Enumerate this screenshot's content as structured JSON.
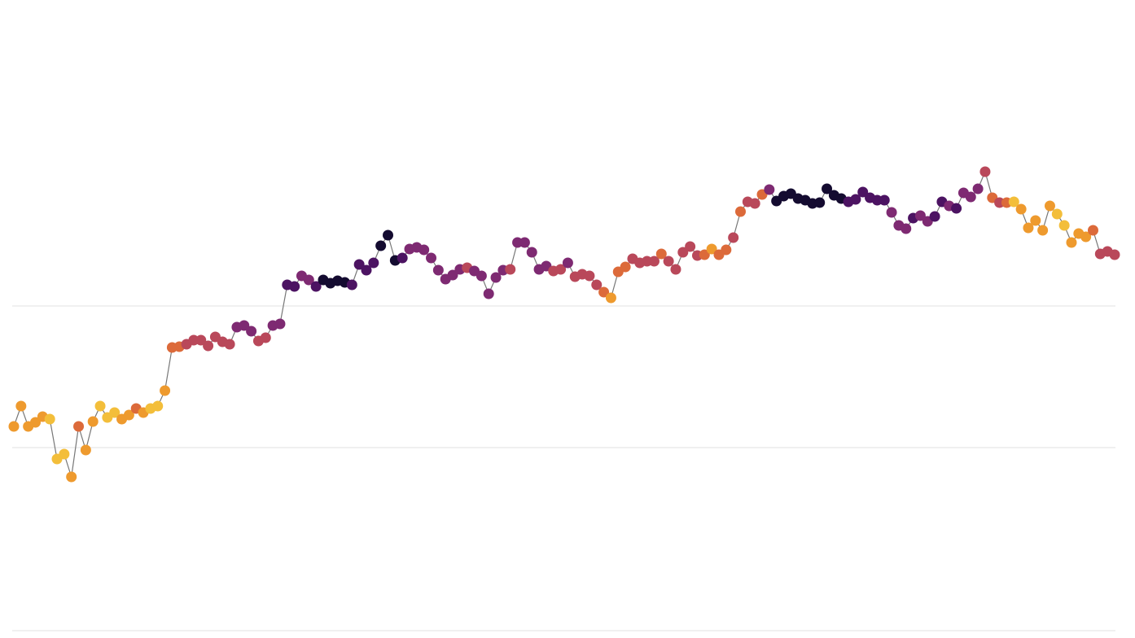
{
  "chart_data": {
    "type": "line",
    "values": [
      251,
      276,
      251,
      256,
      263,
      260,
      211,
      217,
      189,
      251,
      222,
      257,
      276,
      262,
      268,
      260,
      265,
      273,
      268,
      273,
      276,
      295,
      348,
      349,
      352,
      357,
      357,
      350,
      361,
      355,
      352,
      373,
      375,
      368,
      356,
      360,
      375,
      377,
      425,
      423,
      436,
      431,
      423,
      431,
      427,
      430,
      428,
      425,
      450,
      443,
      452,
      473,
      486,
      455,
      458,
      469,
      471,
      468,
      458,
      443,
      432,
      437,
      444,
      446,
      442,
      436,
      414,
      434,
      443,
      444,
      477,
      477,
      465,
      444,
      448,
      442,
      444,
      452,
      435,
      438,
      436,
      425,
      416,
      409,
      441,
      447,
      457,
      452,
      454,
      454,
      463,
      454,
      444,
      465,
      472,
      461,
      462,
      469,
      462,
      468,
      483,
      515,
      527,
      525,
      536,
      542,
      528,
      534,
      537,
      531,
      529,
      525,
      526,
      543,
      535,
      531,
      527,
      530,
      539,
      532,
      529,
      529,
      514,
      498,
      494,
      507,
      510,
      503,
      509,
      527,
      522,
      519,
      538,
      533,
      543,
      564,
      532,
      526,
      526,
      527,
      518,
      495,
      504,
      492,
      522,
      512,
      498,
      477,
      488,
      484,
      492,
      463,
      466,
      462
    ],
    "colors": [
      "#ee9a2e",
      "#ee9a2e",
      "#ee9a2e",
      "#ee9a2e",
      "#ee9a2e",
      "#f3be3a",
      "#f3be3a",
      "#f3be3a",
      "#ee9a2e",
      "#dc6a3a",
      "#ee9a2e",
      "#ee9a2e",
      "#f3be3a",
      "#f3be3a",
      "#f3be3a",
      "#ee9a2e",
      "#ee9a2e",
      "#dc6a3a",
      "#ee9a2e",
      "#f3be3a",
      "#f3be3a",
      "#ee9a2e",
      "#dc6a3a",
      "#dc6a3a",
      "#b9485a",
      "#b9485a",
      "#b9485a",
      "#b9485a",
      "#b9485a",
      "#b9485a",
      "#b9485a",
      "#7e2a72",
      "#7e2a72",
      "#7e2a72",
      "#b9485a",
      "#b9485a",
      "#7e2a72",
      "#7e2a72",
      "#4c1362",
      "#4c1362",
      "#7e2a72",
      "#7e2a72",
      "#4c1362",
      "#140b30",
      "#140b30",
      "#140b30",
      "#140b30",
      "#4c1362",
      "#4c1362",
      "#4c1362",
      "#4c1362",
      "#140b30",
      "#140b30",
      "#140b30",
      "#4c1362",
      "#7e2a72",
      "#7e2a72",
      "#7e2a72",
      "#7e2a72",
      "#7e2a72",
      "#7e2a72",
      "#7e2a72",
      "#7e2a72",
      "#b9485a",
      "#7e2a72",
      "#7e2a72",
      "#7e2a72",
      "#7e2a72",
      "#7e2a72",
      "#b9485a",
      "#7e2a72",
      "#7e2a72",
      "#7e2a72",
      "#7e2a72",
      "#7e2a72",
      "#b9485a",
      "#b9485a",
      "#7e2a72",
      "#b9485a",
      "#b9485a",
      "#b9485a",
      "#b9485a",
      "#dc6a3a",
      "#ee9a2e",
      "#dc6a3a",
      "#dc6a3a",
      "#b9485a",
      "#b9485a",
      "#b9485a",
      "#b9485a",
      "#dc6a3a",
      "#b9485a",
      "#b9485a",
      "#b9485a",
      "#b9485a",
      "#b9485a",
      "#dc6a3a",
      "#ee9a2e",
      "#dc6a3a",
      "#dc6a3a",
      "#b9485a",
      "#dc6a3a",
      "#b9485a",
      "#b9485a",
      "#dc6a3a",
      "#7e2a72",
      "#140b30",
      "#140b30",
      "#140b30",
      "#140b30",
      "#140b30",
      "#140b30",
      "#140b30",
      "#140b30",
      "#140b30",
      "#140b30",
      "#4c1362",
      "#4c1362",
      "#4c1362",
      "#4c1362",
      "#4c1362",
      "#4c1362",
      "#7e2a72",
      "#7e2a72",
      "#7e2a72",
      "#4c1362",
      "#7e2a72",
      "#7e2a72",
      "#4c1362",
      "#4c1362",
      "#7e2a72",
      "#4c1362",
      "#7e2a72",
      "#7e2a72",
      "#7e2a72",
      "#b9485a",
      "#dc6a3a",
      "#b9485a",
      "#dc6a3a",
      "#f3be3a",
      "#ee9a2e",
      "#ee9a2e",
      "#ee9a2e",
      "#ee9a2e",
      "#ee9a2e",
      "#f3be3a",
      "#f3be3a",
      "#ee9a2e",
      "#ee9a2e",
      "#ee9a2e",
      "#dc6a3a",
      "#b9485a",
      "#b9485a",
      "#b9485a"
    ],
    "line_color": "#777777",
    "ylim": [
      0,
      775
    ],
    "yticks": [
      0,
      225,
      399
    ],
    "grid": true
  }
}
